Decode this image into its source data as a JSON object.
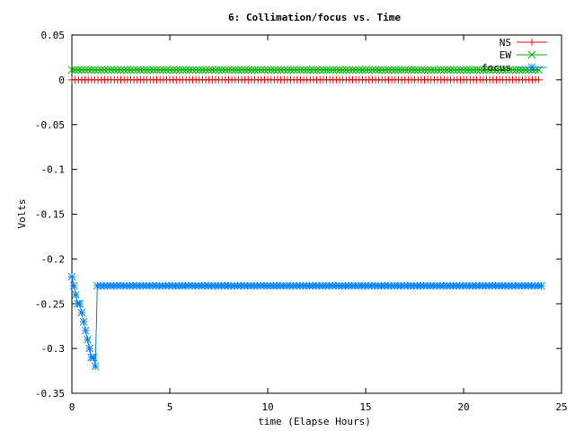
{
  "chart_data": {
    "type": "line",
    "title": "6: Collimation/focus vs. Time",
    "xlabel": "time (Elapse Hours)",
    "ylabel": "Volts",
    "xlim": [
      0,
      25
    ],
    "ylim": [
      -0.35,
      0.05
    ],
    "xticks": [
      0,
      5,
      10,
      15,
      20,
      25
    ],
    "xtick_labels": [
      "0",
      "5",
      "10",
      "15",
      "20",
      "25"
    ],
    "yticks": [
      0.05,
      0,
      -0.05,
      -0.1,
      -0.15,
      -0.2,
      -0.25,
      -0.3,
      -0.35
    ],
    "ytick_labels": [
      "0.05",
      "0",
      "-0.05",
      "-0.1",
      "-0.15",
      "-0.2",
      "-0.25",
      "-0.3",
      "-0.35"
    ],
    "grid": false,
    "legend": "top-right",
    "series": [
      {
        "name": "NS",
        "color": "#ff0000",
        "marker": "plus",
        "x_start": 0,
        "x_end": 24,
        "x_step": 0.1667,
        "constant_y": 0
      },
      {
        "name": "EW",
        "color": "#00b000",
        "marker": "cross",
        "x_start": 0,
        "x_end": 24,
        "x_step": 0.1667,
        "constant_y": 0.011
      },
      {
        "name": "focus",
        "color": "#0080ff",
        "marker": "star",
        "x": [
          0,
          0.1,
          0.2,
          0.3,
          0.4,
          0.5,
          0.6,
          0.7,
          0.8,
          0.9,
          1.0,
          1.1,
          1.2,
          1.3
        ],
        "y": [
          -0.22,
          -0.23,
          -0.24,
          -0.25,
          -0.25,
          -0.26,
          -0.27,
          -0.28,
          -0.29,
          -0.3,
          -0.31,
          -0.31,
          -0.32,
          -0.23
        ],
        "plateau": {
          "x_start": 1.3,
          "x_end": 24,
          "x_step": 0.1667,
          "y": -0.23
        }
      }
    ]
  }
}
